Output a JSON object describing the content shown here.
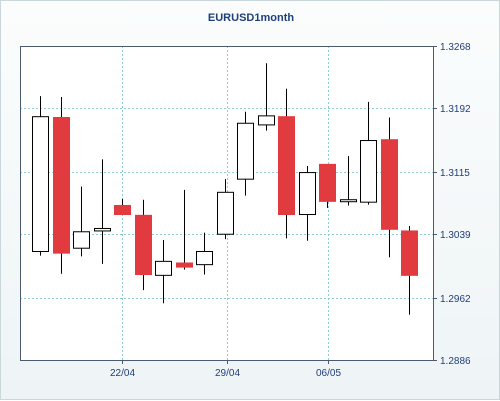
{
  "chart_data": {
    "type": "candlestick",
    "title": "EURUSD1month",
    "y_ticks": [
      "1.3268",
      "1.3192",
      "1.3115",
      "1.3039",
      "1.2962",
      "1.2886"
    ],
    "ylim": [
      1.2886,
      1.3268
    ],
    "x_ticks": [
      "22/04",
      "29/04",
      "06/05"
    ],
    "grid": true,
    "y_axis_side": "right",
    "colors": {
      "up": "#ffffff",
      "down": "#e23b3f",
      "outline": "#000000",
      "grid": "#8fcfd4",
      "text": "#1f3f7a"
    },
    "candles": [
      {
        "open": 1.3018,
        "high": 1.3207,
        "low": 1.3013,
        "close": 1.3182
      },
      {
        "open": 1.3181,
        "high": 1.3206,
        "low": 1.2991,
        "close": 1.3016
      },
      {
        "open": 1.3022,
        "high": 1.3097,
        "low": 1.3012,
        "close": 1.3042
      },
      {
        "open": 1.3043,
        "high": 1.313,
        "low": 1.3003,
        "close": 1.3046
      },
      {
        "open": 1.3074,
        "high": 1.3082,
        "low": 1.3066,
        "close": 1.3063
      },
      {
        "open": 1.3062,
        "high": 1.3081,
        "low": 1.2971,
        "close": 1.299
      },
      {
        "open": 1.2989,
        "high": 1.3032,
        "low": 1.2955,
        "close": 1.3006
      },
      {
        "open": 1.3004,
        "high": 1.3093,
        "low": 1.2996,
        "close": 1.2999
      },
      {
        "open": 1.3002,
        "high": 1.3041,
        "low": 1.299,
        "close": 1.3018
      },
      {
        "open": 1.3039,
        "high": 1.3106,
        "low": 1.3033,
        "close": 1.309
      },
      {
        "open": 1.3106,
        "high": 1.3188,
        "low": 1.3086,
        "close": 1.3174
      },
      {
        "open": 1.3172,
        "high": 1.3247,
        "low": 1.3165,
        "close": 1.3183
      },
      {
        "open": 1.3182,
        "high": 1.3216,
        "low": 1.3034,
        "close": 1.3063
      },
      {
        "open": 1.3063,
        "high": 1.3122,
        "low": 1.3031,
        "close": 1.3114
      },
      {
        "open": 1.3124,
        "high": 1.3124,
        "low": 1.3071,
        "close": 1.3079
      },
      {
        "open": 1.308,
        "high": 1.3134,
        "low": 1.3074,
        "close": 1.3081
      },
      {
        "open": 1.3078,
        "high": 1.32,
        "low": 1.3075,
        "close": 1.3153
      },
      {
        "open": 1.3154,
        "high": 1.3181,
        "low": 1.3011,
        "close": 1.3045
      },
      {
        "open": 1.3043,
        "high": 1.3049,
        "low": 1.2941,
        "close": 1.2989
      }
    ]
  }
}
